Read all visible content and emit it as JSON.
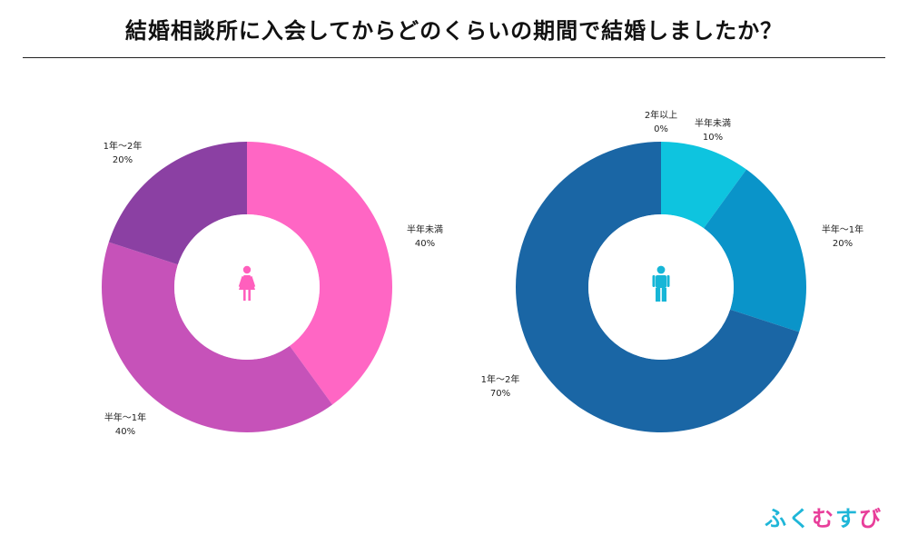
{
  "page": {
    "title": "結婚相談所に入会してからどのくらいの期間で結婚しましたか？"
  },
  "logo": {
    "chars": [
      {
        "text": "ふ",
        "color": "#1fb6d8"
      },
      {
        "text": "く",
        "color": "#1fb6d8"
      },
      {
        "text": "む",
        "color": "#e83e9a"
      },
      {
        "text": "す",
        "color": "#1fb6d8"
      },
      {
        "text": "び",
        "color": "#e83e9a"
      }
    ]
  },
  "chart_data": [
    {
      "type": "pie",
      "donut": true,
      "center_icon": "woman-icon",
      "center_icon_color": "#ff5fbd",
      "slices": [
        {
          "label": "半年未満",
          "value": 40,
          "display": "40%",
          "color": "#ff66c4"
        },
        {
          "label": "半年〜1年",
          "value": 40,
          "display": "40%",
          "color": "#c652b9"
        },
        {
          "label": "1年〜2年",
          "value": 20,
          "display": "20%",
          "color": "#8b40a3"
        }
      ]
    },
    {
      "type": "pie",
      "donut": true,
      "center_icon": "man-icon",
      "center_icon_color": "#16b6d7",
      "slices": [
        {
          "label": "2年以上",
          "value": 0,
          "display": "0%",
          "color": "#1a66a5"
        },
        {
          "label": "半年未満",
          "value": 10,
          "display": "10%",
          "color": "#0ec4df"
        },
        {
          "label": "半年〜1年",
          "value": 20,
          "display": "20%",
          "color": "#0a94c9"
        },
        {
          "label": "1年〜2年",
          "value": 70,
          "display": "70%",
          "color": "#1a66a5"
        }
      ]
    }
  ]
}
